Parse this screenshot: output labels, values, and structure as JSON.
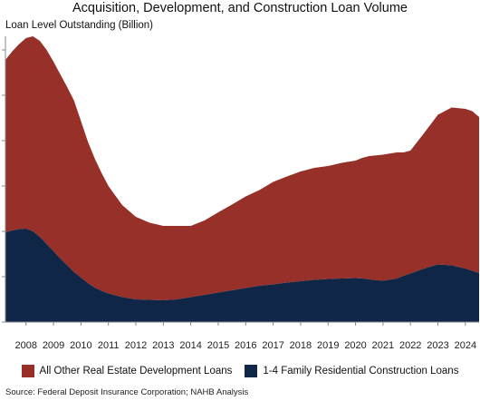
{
  "title": "Acquisition, Development, and Construction Loan Volume",
  "source": "Source: Federal Deposit Insurance Corporation; NAHB Analysis",
  "colors": {
    "other_loans": "#973029",
    "residential_loans": "#0f2647",
    "axis": "#888888"
  },
  "chart_data": {
    "type": "area",
    "stacked": true,
    "title": "Acquisition, Development, and Construction Loan Volume",
    "ylabel": "Loan Level Outstanding (Billion)",
    "xlabel": "",
    "x": [
      2007.25,
      2007.5,
      2007.75,
      2008.0,
      2008.25,
      2008.5,
      2008.75,
      2009.0,
      2009.25,
      2009.5,
      2009.75,
      2010.0,
      2010.25,
      2010.5,
      2010.75,
      2011.0,
      2011.5,
      2012.0,
      2012.5,
      2013.0,
      2013.5,
      2014.0,
      2014.5,
      2015.0,
      2015.5,
      2016.0,
      2016.5,
      2017.0,
      2017.5,
      2018.0,
      2018.5,
      2019.0,
      2019.5,
      2020.0,
      2020.25,
      2020.5,
      2021.0,
      2021.5,
      2021.75,
      2022.0,
      2022.5,
      2023.0,
      2023.5,
      2024.0,
      2024.25,
      2024.5
    ],
    "xticks": [
      "2008",
      "2009",
      "2010",
      "2011",
      "2012",
      "2013",
      "2014",
      "2015",
      "2016",
      "2017",
      "2018",
      "2019",
      "2020",
      "2021",
      "2022",
      "2023",
      "2024"
    ],
    "ylim": [
      0,
      630
    ],
    "grid": false,
    "legend_position": "bottom",
    "series": [
      {
        "name": "1-4 Family Residential Construction Loans",
        "values": [
          198,
          202,
          205,
          206,
          200,
          188,
          172,
          156,
          140,
          125,
          110,
          98,
          86,
          76,
          69,
          63,
          55,
          50,
          49,
          48,
          50,
          55,
          60,
          65,
          70,
          75,
          80,
          83,
          87,
          90,
          93,
          95,
          96,
          97,
          96,
          94,
          91,
          96,
          102,
          107,
          118,
          127,
          125,
          118,
          113,
          108
        ]
      },
      {
        "name": "All Other Real Estate Development Loans",
        "values": [
          380,
          395,
          408,
          420,
          430,
          432,
          428,
          418,
          406,
          393,
          378,
          345,
          312,
          285,
          260,
          237,
          203,
          182,
          170,
          164,
          162,
          157,
          164,
          177,
          189,
          202,
          211,
          226,
          234,
          242,
          247,
          249,
          255,
          259,
          266,
          272,
          278,
          278,
          272,
          271,
          299,
          330,
          348,
          352,
          352,
          344
        ]
      }
    ]
  }
}
